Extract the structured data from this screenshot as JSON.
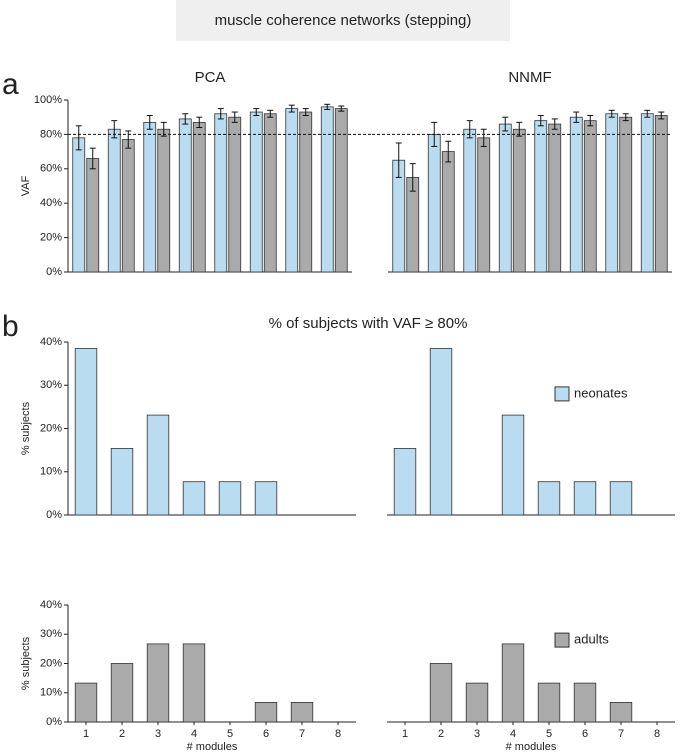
{
  "header": "muscle coherence networks (stepping)",
  "panels": [
    {
      "label": "a"
    },
    {
      "label": "b",
      "title": "% of subjects with VAF ≥ 80%"
    }
  ],
  "chart_data": [
    {
      "type": "bar",
      "title": "PCA",
      "ylabel": "VAF",
      "series": [
        {
          "color": "#b9dcf0",
          "values": [
            78,
            83,
            87,
            89,
            92,
            93,
            95,
            96
          ],
          "errors": [
            7,
            5,
            4,
            3,
            3,
            2,
            2,
            1.5
          ]
        },
        {
          "color": "#aaaaaa",
          "values": [
            66,
            77,
            83,
            87,
            90,
            92,
            93,
            95
          ],
          "errors": [
            6,
            5,
            4,
            3,
            3,
            2,
            2,
            1.5
          ]
        }
      ],
      "ylim": [
        0,
        100
      ],
      "yticks": [
        {
          "value": 0,
          "label": "0%"
        },
        {
          "value": 20,
          "label": "20%"
        },
        {
          "value": 40,
          "label": "40%"
        },
        {
          "value": 60,
          "label": "60%"
        },
        {
          "value": 80,
          "label": "80%"
        },
        {
          "value": 100,
          "label": "100%"
        }
      ],
      "hline": 80
    },
    {
      "type": "bar",
      "title": "NNMF",
      "series": [
        {
          "color": "#b9dcf0",
          "values": [
            65,
            80,
            83,
            86,
            88,
            90,
            92,
            92
          ],
          "errors": [
            10,
            7,
            5,
            4,
            3,
            3,
            2,
            2
          ]
        },
        {
          "color": "#aaaaaa",
          "values": [
            55,
            70,
            78,
            83,
            86,
            88,
            90,
            91
          ],
          "errors": [
            8,
            6,
            5,
            4,
            3,
            3,
            2,
            2
          ]
        }
      ],
      "ylim": [
        0,
        100
      ],
      "hline": 80
    },
    {
      "type": "bar",
      "ylabel": "% subjects",
      "series": [
        {
          "color": "#b9dcf0",
          "values": [
            38.5,
            15.4,
            23.1,
            7.7,
            7.7,
            7.7,
            0,
            0
          ]
        }
      ],
      "ylim": [
        0,
        40
      ],
      "yticks": [
        {
          "value": 0,
          "label": "0%"
        },
        {
          "value": 10,
          "label": "10%"
        },
        {
          "value": 20,
          "label": "20%"
        },
        {
          "value": 30,
          "label": "30%"
        },
        {
          "value": 40,
          "label": "40%"
        }
      ]
    },
    {
      "type": "bar",
      "series": [
        {
          "name": "neonates",
          "color": "#b9dcf0",
          "values": [
            15.4,
            38.5,
            0,
            23.1,
            7.7,
            7.7,
            7.7,
            0
          ]
        }
      ],
      "ylim": [
        0,
        40
      ],
      "legend": "upper right"
    },
    {
      "type": "bar",
      "ylabel": "% subjects",
      "xlabel": "# modules",
      "categories": [
        "1",
        "2",
        "3",
        "4",
        "5",
        "6",
        "7",
        "8"
      ],
      "series": [
        {
          "color": "#aaaaaa",
          "values": [
            13.3,
            20,
            26.7,
            26.7,
            0,
            6.7,
            6.7,
            0
          ]
        }
      ],
      "ylim": [
        0,
        40
      ],
      "yticks": [
        {
          "value": 0,
          "label": "0%"
        },
        {
          "value": 10,
          "label": "10%"
        },
        {
          "value": 20,
          "label": "20%"
        },
        {
          "value": 30,
          "label": "30%"
        },
        {
          "value": 40,
          "label": "40%"
        }
      ]
    },
    {
      "type": "bar",
      "xlabel": "# modules",
      "categories": [
        "1",
        "2",
        "3",
        "4",
        "5",
        "6",
        "7",
        "8"
      ],
      "series": [
        {
          "name": "adults",
          "color": "#aaaaaa",
          "values": [
            0,
            20,
            13.3,
            26.7,
            13.3,
            13.3,
            6.7,
            0
          ]
        }
      ],
      "ylim": [
        0,
        40
      ],
      "legend": "upper right"
    }
  ]
}
